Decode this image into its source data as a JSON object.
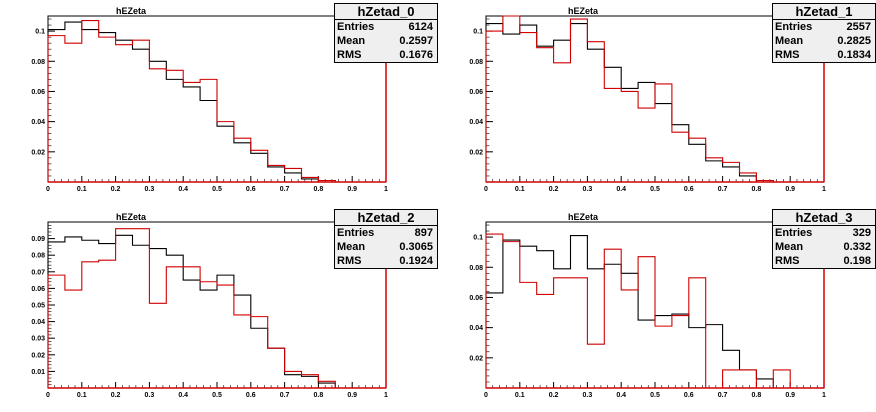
{
  "colors": {
    "series_a": "#000000",
    "series_b": "#d00000",
    "stats_bg": "#efefef"
  },
  "chart_data": [
    {
      "type": "histogram",
      "title": "hEZeta",
      "stats": {
        "name": "hZetad_0",
        "rows": [
          [
            "Entries",
            "6124"
          ],
          [
            "Mean",
            "0.2597"
          ],
          [
            "RMS",
            "0.1676"
          ]
        ]
      },
      "xlim": [
        0,
        1
      ],
      "ylim": [
        0,
        0.11
      ],
      "xticks": [
        "0",
        "0.1",
        "0.2",
        "0.3",
        "0.4",
        "0.5",
        "0.6",
        "0.7",
        "0.8",
        "0.9",
        "1"
      ],
      "yticks": [
        [
          0.02,
          "0.02"
        ],
        [
          0.04,
          "0.04"
        ],
        [
          0.06,
          "0.06"
        ],
        [
          0.08,
          "0.08"
        ],
        [
          0.1,
          "0.1"
        ]
      ],
      "bin_edges": [
        0,
        0.05,
        0.1,
        0.15,
        0.2,
        0.25,
        0.3,
        0.35,
        0.4,
        0.45,
        0.5,
        0.55,
        0.6,
        0.65,
        0.7,
        0.75,
        0.8,
        0.85,
        0.9,
        0.95,
        1.0
      ],
      "series": [
        {
          "color": "black",
          "values": [
            0.101,
            0.106,
            0.101,
            0.099,
            0.094,
            0.088,
            0.08,
            0.068,
            0.063,
            0.054,
            0.037,
            0.026,
            0.019,
            0.01,
            0.006,
            0.002,
            0.001,
            0.0,
            0.0,
            0.0
          ]
        },
        {
          "color": "red",
          "values": [
            0.097,
            0.092,
            0.107,
            0.096,
            0.091,
            0.094,
            0.075,
            0.074,
            0.066,
            0.068,
            0.04,
            0.029,
            0.021,
            0.011,
            0.009,
            0.003,
            0.001,
            0.0,
            0.0,
            0.0
          ]
        }
      ]
    },
    {
      "type": "histogram",
      "title": "hEZeta",
      "stats": {
        "name": "hZetad_1",
        "rows": [
          [
            "Entries",
            "2557"
          ],
          [
            "Mean",
            "0.2825"
          ],
          [
            "RMS",
            "0.1834"
          ]
        ]
      },
      "xlim": [
        0,
        1
      ],
      "ylim": [
        0,
        0.11
      ],
      "xticks": [
        "0",
        "0.1",
        "0.2",
        "0.3",
        "0.4",
        "0.5",
        "0.6",
        "0.7",
        "0.8",
        "0.9",
        "1"
      ],
      "yticks": [
        [
          0.02,
          "0.02"
        ],
        [
          0.04,
          "0.04"
        ],
        [
          0.06,
          "0.06"
        ],
        [
          0.08,
          "0.08"
        ],
        [
          0.1,
          "0.1"
        ]
      ],
      "bin_edges": [
        0,
        0.05,
        0.1,
        0.15,
        0.2,
        0.25,
        0.3,
        0.35,
        0.4,
        0.45,
        0.5,
        0.55,
        0.6,
        0.65,
        0.7,
        0.75,
        0.8,
        0.85,
        0.9,
        0.95,
        1.0
      ],
      "series": [
        {
          "color": "black",
          "values": [
            0.105,
            0.098,
            0.104,
            0.09,
            0.094,
            0.105,
            0.088,
            0.076,
            0.062,
            0.066,
            0.052,
            0.038,
            0.025,
            0.014,
            0.01,
            0.004,
            0.001,
            0.0,
            0.0,
            0.0
          ]
        },
        {
          "color": "red",
          "values": [
            0.1,
            0.11,
            0.099,
            0.089,
            0.079,
            0.108,
            0.093,
            0.062,
            0.06,
            0.049,
            0.065,
            0.033,
            0.029,
            0.016,
            0.013,
            0.006,
            0.001,
            0.0,
            0.0,
            0.0
          ]
        }
      ]
    },
    {
      "type": "histogram",
      "title": "hEZeta",
      "stats": {
        "name": "hZetad_2",
        "rows": [
          [
            "Entries",
            "897"
          ],
          [
            "Mean",
            "0.3065"
          ],
          [
            "RMS",
            "0.1924"
          ]
        ]
      },
      "xlim": [
        0,
        1
      ],
      "ylim": [
        0,
        0.1
      ],
      "xticks": [
        "0",
        "0.1",
        "0.2",
        "0.3",
        "0.4",
        "0.5",
        "0.6",
        "0.7",
        "0.8",
        "0.9",
        "1"
      ],
      "yticks": [
        [
          0.01,
          "0.01"
        ],
        [
          0.02,
          "0.02"
        ],
        [
          0.03,
          "0.03"
        ],
        [
          0.04,
          "0.04"
        ],
        [
          0.05,
          "0.05"
        ],
        [
          0.06,
          "0.06"
        ],
        [
          0.07,
          "0.07"
        ],
        [
          0.08,
          "0.08"
        ],
        [
          0.09,
          "0.09"
        ]
      ],
      "bin_edges": [
        0,
        0.05,
        0.1,
        0.15,
        0.2,
        0.25,
        0.3,
        0.35,
        0.4,
        0.45,
        0.5,
        0.55,
        0.6,
        0.65,
        0.7,
        0.75,
        0.8,
        0.85,
        0.9,
        0.95,
        1.0
      ],
      "series": [
        {
          "color": "black",
          "values": [
            0.088,
            0.091,
            0.089,
            0.087,
            0.092,
            0.086,
            0.084,
            0.08,
            0.065,
            0.059,
            0.068,
            0.056,
            0.036,
            0.024,
            0.008,
            0.007,
            0.003,
            0.0,
            0.0,
            0.0
          ]
        },
        {
          "color": "red",
          "values": [
            0.068,
            0.059,
            0.076,
            0.077,
            0.096,
            0.096,
            0.051,
            0.073,
            0.073,
            0.064,
            0.062,
            0.044,
            0.043,
            0.024,
            0.01,
            0.008,
            0.004,
            0.0,
            0.0,
            0.0
          ]
        }
      ]
    },
    {
      "type": "histogram",
      "title": "hEZeta",
      "stats": {
        "name": "hZetad_3",
        "rows": [
          [
            "Entries",
            "329"
          ],
          [
            "Mean",
            "0.332"
          ],
          [
            "RMS",
            "0.198"
          ]
        ]
      },
      "xlim": [
        0,
        1
      ],
      "ylim": [
        0,
        0.11
      ],
      "xticks": [
        "0",
        "0.1",
        "0.2",
        "0.3",
        "0.4",
        "0.5",
        "0.6",
        "0.7",
        "0.8",
        "0.9",
        "1"
      ],
      "yticks": [
        [
          0.02,
          "0.02"
        ],
        [
          0.04,
          "0.04"
        ],
        [
          0.06,
          "0.06"
        ],
        [
          0.08,
          "0.08"
        ],
        [
          0.1,
          "0.1"
        ]
      ],
      "bin_edges": [
        0,
        0.05,
        0.1,
        0.15,
        0.2,
        0.25,
        0.3,
        0.35,
        0.4,
        0.45,
        0.5,
        0.55,
        0.6,
        0.65,
        0.7,
        0.75,
        0.8,
        0.85,
        0.9,
        0.95,
        1.0
      ],
      "series": [
        {
          "color": "black",
          "values": [
            0.063,
            0.098,
            0.094,
            0.091,
            0.079,
            0.101,
            0.079,
            0.082,
            0.076,
            0.045,
            0.048,
            0.049,
            0.04,
            0.042,
            0.025,
            0.012,
            0.006,
            0.0,
            0.0,
            0.0
          ]
        },
        {
          "color": "red",
          "values": [
            0.102,
            0.097,
            0.07,
            0.062,
            0.073,
            0.073,
            0.029,
            0.092,
            0.065,
            0.087,
            0.041,
            0.048,
            0.073,
            0.0,
            0.012,
            0.012,
            0.0,
            0.012,
            0.0,
            0.0
          ]
        }
      ]
    }
  ]
}
